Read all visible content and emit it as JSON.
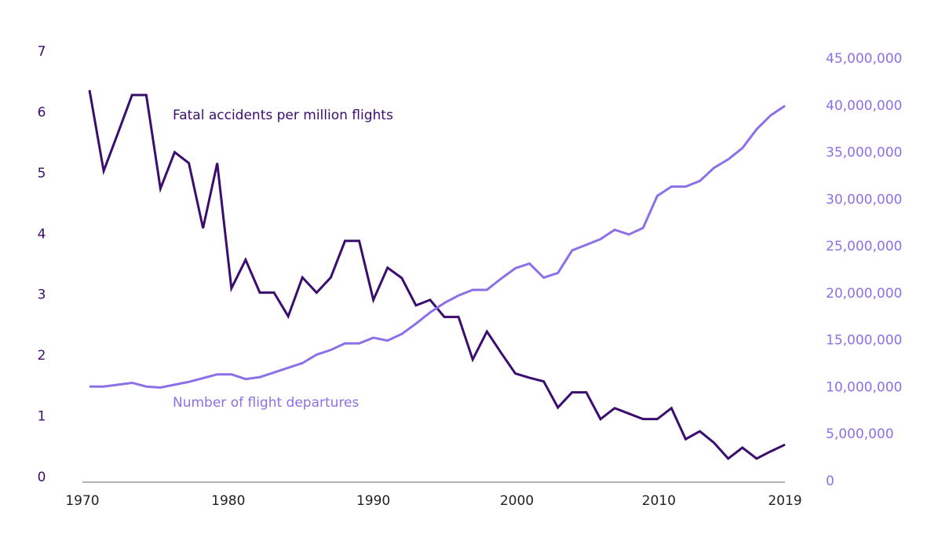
{
  "chart_data": {
    "type": "line",
    "x": [
      1970,
      1971,
      1972,
      1973,
      1974,
      1975,
      1976,
      1977,
      1978,
      1979,
      1980,
      1981,
      1982,
      1983,
      1984,
      1985,
      1986,
      1987,
      1988,
      1989,
      1990,
      1991,
      1992,
      1993,
      1994,
      1995,
      1996,
      1997,
      1998,
      1999,
      2000,
      2001,
      2002,
      2003,
      2004,
      2005,
      2006,
      2007,
      2008,
      2009,
      2010,
      2011,
      2012,
      2013,
      2014,
      2015,
      2016,
      2017,
      2018,
      2019
    ],
    "xlim": [
      1970,
      2019
    ],
    "xticks": [
      1970,
      1980,
      1990,
      2000,
      2010,
      2019
    ],
    "ylim": [
      0,
      7
    ],
    "yticks": [
      0,
      1,
      2,
      3,
      4,
      5,
      6,
      7
    ],
    "y2lim": [
      0,
      45000000
    ],
    "y2ticks": [
      0,
      {
        "value": 5000000,
        "label": "5,000,000"
      },
      {
        "value": 10000000,
        "label": "10,000,000"
      },
      {
        "value": 15000000,
        "label": "15,000,000"
      },
      {
        "value": 20000000,
        "label": "20,000,000"
      },
      {
        "value": 25000000,
        "label": "25,000,000"
      },
      {
        "value": 30000000,
        "label": "30,000,000"
      },
      {
        "value": 35000000,
        "label": "35,000,000"
      },
      {
        "value": 40000000,
        "label": "40,000,000"
      },
      {
        "value": 45000000,
        "label": "45,000,000"
      }
    ],
    "grid": false,
    "series": [
      {
        "name": "Fatal accidents per million flights",
        "color": "#3a0d6e",
        "axis": "y",
        "values": [
          6.37,
          5.04,
          5.66,
          6.29,
          6.29,
          4.75,
          5.35,
          5.17,
          4.1,
          5.17,
          3.11,
          3.58,
          3.04,
          3.04,
          2.65,
          3.29,
          3.04,
          3.29,
          3.89,
          3.89,
          2.92,
          3.45,
          3.28,
          2.83,
          2.92,
          2.64,
          2.64,
          1.94,
          2.4,
          2.05,
          1.71,
          1.64,
          1.58,
          1.15,
          1.4,
          1.4,
          0.96,
          1.14,
          1.05,
          0.96,
          0.96,
          1.14,
          0.63,
          0.76,
          0.57,
          0.31,
          0.49,
          0.31,
          0.43,
          0.54
        ]
      },
      {
        "name": "Number of flight departures",
        "color": "#8c70e8",
        "axis": "y2",
        "values": [
          10100000,
          10100000,
          10300000,
          10500000,
          10100000,
          10000000,
          10300000,
          10600000,
          11000000,
          11400000,
          11400000,
          10900000,
          11100000,
          11600000,
          12100000,
          12600000,
          13500000,
          14000000,
          14700000,
          14700000,
          15300000,
          15000000,
          15700000,
          16800000,
          18000000,
          19000000,
          19800000,
          20400000,
          20400000,
          21600000,
          22700000,
          23200000,
          21700000,
          22200000,
          24600000,
          25200000,
          25800000,
          26800000,
          26300000,
          27000000,
          30400000,
          31400000,
          31400000,
          32000000,
          33400000,
          34300000,
          35500000,
          37500000,
          39000000,
          40000000
        ]
      }
    ]
  }
}
